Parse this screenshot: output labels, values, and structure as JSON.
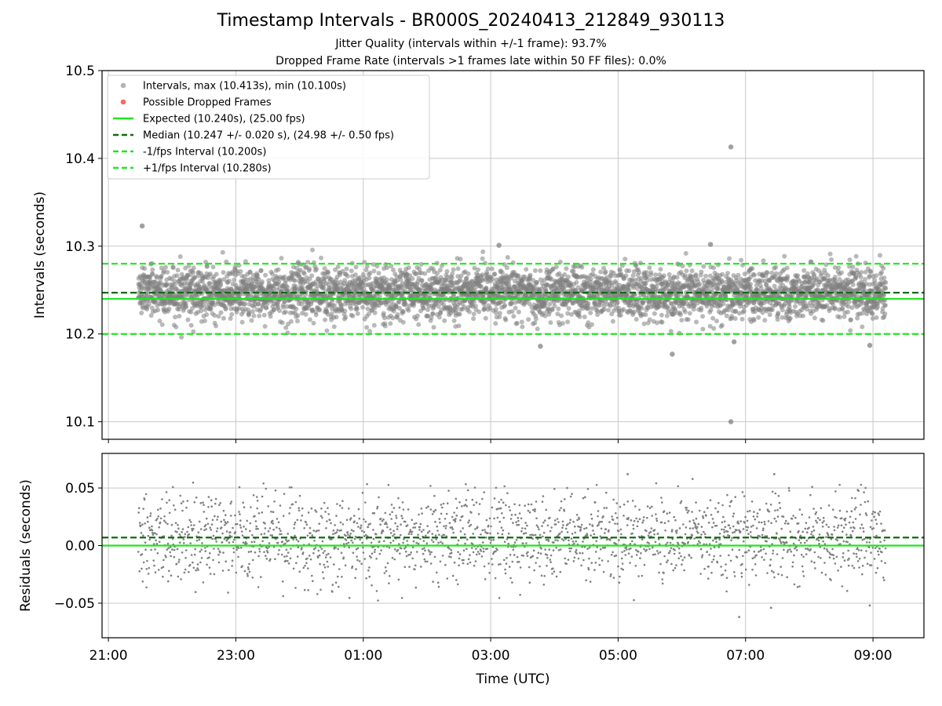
{
  "figure": {
    "title": "Timestamp Intervals - BR000S_20240413_212849_930113",
    "subtitle_1": "Jitter Quality (intervals within +/-1 frame): 93.7%",
    "subtitle_2": "Dropped Frame Rate (intervals >1 frames late within 50 FF files): 0.0%"
  },
  "colors": {
    "points": "#808080",
    "dropped": "#ff6666",
    "expected": "#1ee61e",
    "median": "#0b6e0b",
    "bounds": "#1ee61e",
    "grid": "#c8c8c8"
  },
  "chart_data": [
    {
      "type": "scatter",
      "ylabel": "Intervals (seconds)",
      "ylim": [
        10.08,
        10.5
      ],
      "xlim_hours": [
        20.9,
        33.8
      ],
      "grid": true,
      "legend_placement": "top-left",
      "yticks": [
        {
          "value": 10.1,
          "label": "10.1"
        },
        {
          "value": 10.2,
          "label": "10.2"
        },
        {
          "value": 10.3,
          "label": "10.3"
        },
        {
          "value": 10.4,
          "label": "10.4"
        },
        {
          "value": 10.5,
          "label": "10.5"
        }
      ],
      "legend": [
        {
          "label": "Intervals, max (10.413s), min (10.100s)",
          "kind": "point-gray"
        },
        {
          "label": "Possible Dropped Frames",
          "kind": "point-red"
        },
        {
          "label": "Expected (10.240s), (25.00 fps)",
          "kind": "line-expected"
        },
        {
          "label": "Median (10.247 +/- 0.020 s), (24.98 +/- 0.50 fps)",
          "kind": "line-median"
        },
        {
          "label": "-1/fps Interval (10.200s)",
          "kind": "line-bound"
        },
        {
          "label": "+1/fps Interval (10.280s)",
          "kind": "line-bound"
        }
      ],
      "reference_lines": {
        "expected": 10.24,
        "median": 10.247,
        "lower": 10.2,
        "upper": 10.28
      },
      "x_range_hours": [
        21.47,
        33.2
      ],
      "point_count": 4100,
      "center": 10.247,
      "spread_sd": 0.02,
      "outliers": [
        {
          "t": 21.53,
          "v": 10.323
        },
        {
          "t": 27.13,
          "v": 10.301
        },
        {
          "t": 27.78,
          "v": 10.186
        },
        {
          "t": 29.85,
          "v": 10.177
        },
        {
          "t": 30.45,
          "v": 10.302
        },
        {
          "t": 30.77,
          "v": 10.413
        },
        {
          "t": 30.77,
          "v": 10.1
        },
        {
          "t": 30.82,
          "v": 10.191
        },
        {
          "t": 32.95,
          "v": 10.187
        }
      ]
    },
    {
      "type": "scatter",
      "ylabel": "Residuals (seconds)",
      "xlabel": "Time (UTC)",
      "ylim": [
        -0.08,
        0.08
      ],
      "xlim_hours": [
        20.9,
        33.8
      ],
      "grid": true,
      "yticks": [
        {
          "value": -0.05,
          "label": "−0.05"
        },
        {
          "value": 0.0,
          "label": "0.00"
        },
        {
          "value": 0.05,
          "label": "0.05"
        }
      ],
      "xticks": [
        {
          "value": 21,
          "label": "21:00"
        },
        {
          "value": 23,
          "label": "23:00"
        },
        {
          "value": 25,
          "label": "01:00"
        },
        {
          "value": 27,
          "label": "03:00"
        },
        {
          "value": 29,
          "label": "05:00"
        },
        {
          "value": 31,
          "label": "07:00"
        },
        {
          "value": 33,
          "label": "09:00"
        }
      ],
      "reference_lines": {
        "zero": 0.0,
        "median_offset": 0.007
      },
      "center": 0.007,
      "spread_sd": 0.02,
      "outliers": [
        {
          "t": 29.15,
          "v": 0.062
        },
        {
          "t": 31.45,
          "v": 0.062
        },
        {
          "t": 30.9,
          "v": -0.062
        },
        {
          "t": 31.4,
          "v": -0.054
        },
        {
          "t": 32.95,
          "v": -0.052
        }
      ]
    }
  ]
}
